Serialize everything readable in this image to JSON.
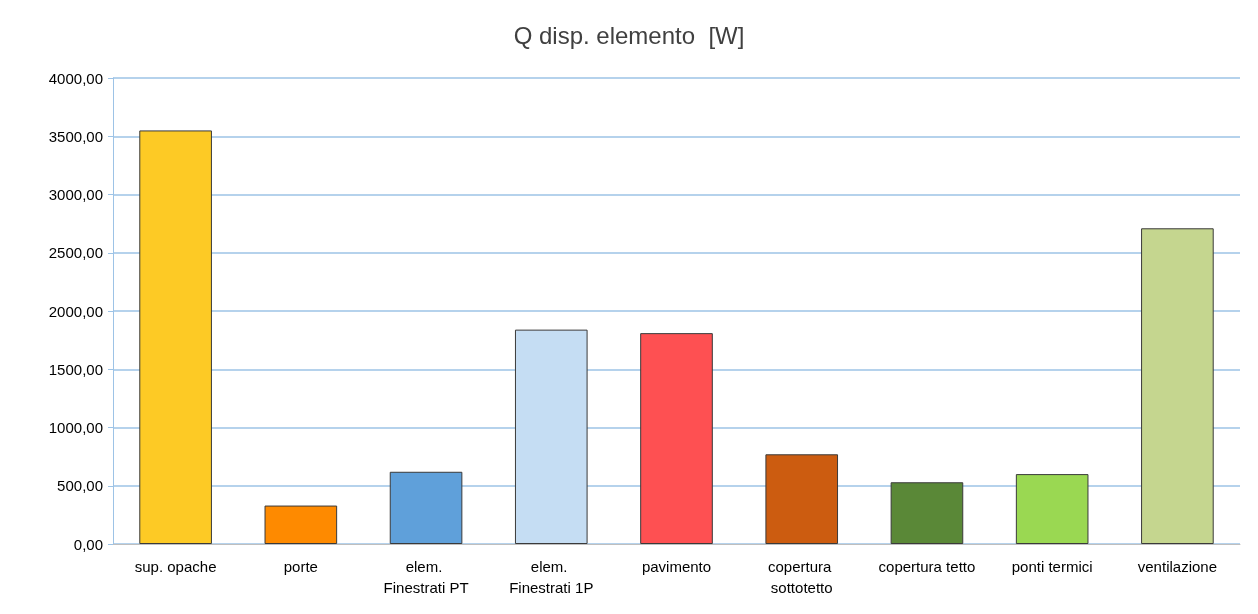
{
  "chart_data": {
    "type": "bar",
    "title": "Q disp. elemento  [W]",
    "categories": [
      "sup. opache",
      "porte",
      "elem. Finestrati PT",
      "elem. Finestrati 1P",
      "pavimento",
      "copertura sottotetto",
      "copertura tetto",
      "ponti termici",
      "ventilazione"
    ],
    "values": [
      3550,
      330,
      620,
      1840,
      1810,
      770,
      530,
      600,
      2710
    ],
    "colors": [
      "#fdca25",
      "#fe8a00",
      "#5fa0da",
      "#c5ddf3",
      "#fe5052",
      "#cc5c10",
      "#5a8837",
      "#9ad852",
      "#c5d68f"
    ],
    "ylim": [
      0,
      4000
    ],
    "yticks": [
      {
        "value": 0,
        "label": "0,00"
      },
      {
        "value": 500,
        "label": "500,00"
      },
      {
        "value": 1000,
        "label": "1000,00"
      },
      {
        "value": 1500,
        "label": "1500,00"
      },
      {
        "value": 2000,
        "label": "2000,00"
      },
      {
        "value": 2500,
        "label": "2500,00"
      },
      {
        "value": 3000,
        "label": "3000,00"
      },
      {
        "value": 3500,
        "label": "3500,00"
      },
      {
        "value": 4000,
        "label": "4000,00"
      }
    ],
    "grid": "y"
  }
}
